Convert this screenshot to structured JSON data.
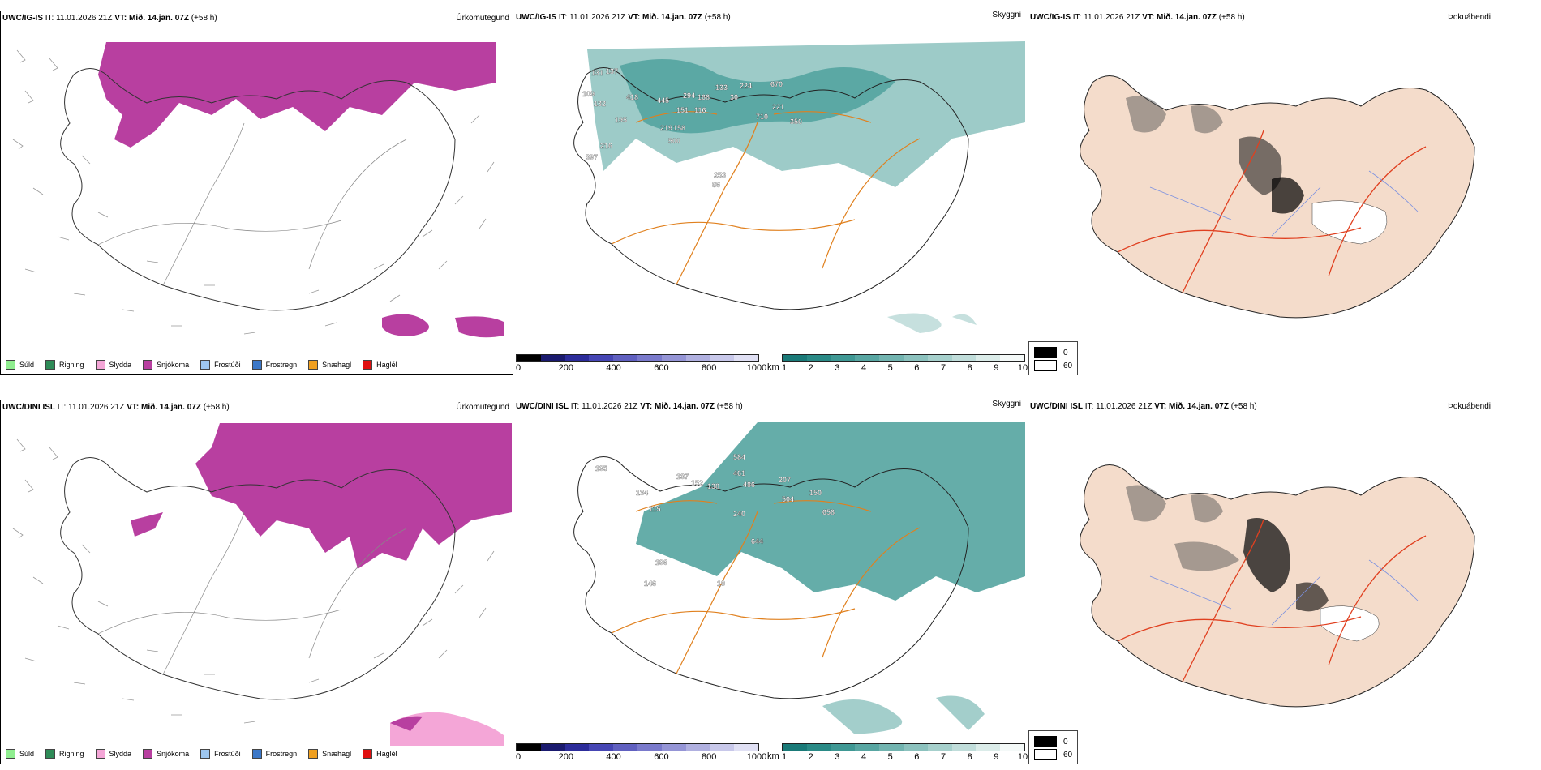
{
  "rows": [
    {
      "model": "UWC/IG-IS",
      "it_label": "IT:",
      "it_value": "11.01.2026 21Z",
      "vt_label": "VT:",
      "vt_value": "Mið. 14.jan. 07Z",
      "lead": "(+58 h)"
    },
    {
      "model": "UWC/DINI ISL",
      "it_label": "IT:",
      "it_value": "11.01.2026 21Z",
      "vt_label": "VT:",
      "vt_value": "Mið. 14.jan. 07Z",
      "lead": "(+58 h)"
    }
  ],
  "fields": {
    "precip_type": "Úrkomutegund",
    "visibility": "Skyggni",
    "fog": "Þokuábendi"
  },
  "precip_legend": [
    {
      "label": "Súld",
      "color": "#90ee90"
    },
    {
      "label": "Rigning",
      "color": "#2e8b57"
    },
    {
      "label": "Slydda",
      "color": "#f4a6d7"
    },
    {
      "label": "Snjókoma",
      "color": "#b83fa0"
    },
    {
      "label": "Frostúði",
      "color": "#9ec7f0"
    },
    {
      "label": "Frostregn",
      "color": "#3c78c8"
    },
    {
      "label": "Snæhagl",
      "color": "#f0a020"
    },
    {
      "label": "Haglél",
      "color": "#e01010"
    }
  ],
  "ceiling_bar": {
    "unit": "m",
    "ticks": [
      "0",
      "200",
      "400",
      "600",
      "800",
      "1000"
    ],
    "colors": [
      "#000000",
      "#1a1a6e",
      "#2c2c9a",
      "#4646b4",
      "#6060c0",
      "#7a7acc",
      "#9595d6",
      "#b0b0e0",
      "#c8c8ea",
      "#e0e0f4"
    ]
  },
  "visibility_bar": {
    "unit": "km",
    "ticks": [
      "1",
      "2",
      "3",
      "4",
      "5",
      "6",
      "7",
      "8",
      "9",
      "10"
    ],
    "colors": [
      "#1a7a78",
      "#2a8a86",
      "#3f9894",
      "#58a6a2",
      "#72b4b0",
      "#8cc2be",
      "#a6d0cc",
      "#c0ddda",
      "#dbece9",
      "#f4f9f8"
    ]
  },
  "fog_legend": [
    {
      "label": "0",
      "color": "#000000"
    },
    {
      "label": "60",
      "color": "#ffffff"
    }
  ],
  "ceiling_labels_top": [
    "131",
    "137",
    "109",
    "132",
    "418",
    "195",
    "216",
    "397",
    "445",
    "219",
    "500",
    "294",
    "168",
    "151",
    "116",
    "158",
    "133",
    "30",
    "224",
    "670",
    "221",
    "710",
    "350",
    "253",
    "86"
  ],
  "ceiling_labels_bottom": [
    "195",
    "134",
    "115",
    "137",
    "152",
    "138",
    "584",
    "461",
    "486",
    "207",
    "504",
    "150",
    "658",
    "240",
    "644",
    "196",
    "146",
    "10"
  ]
}
